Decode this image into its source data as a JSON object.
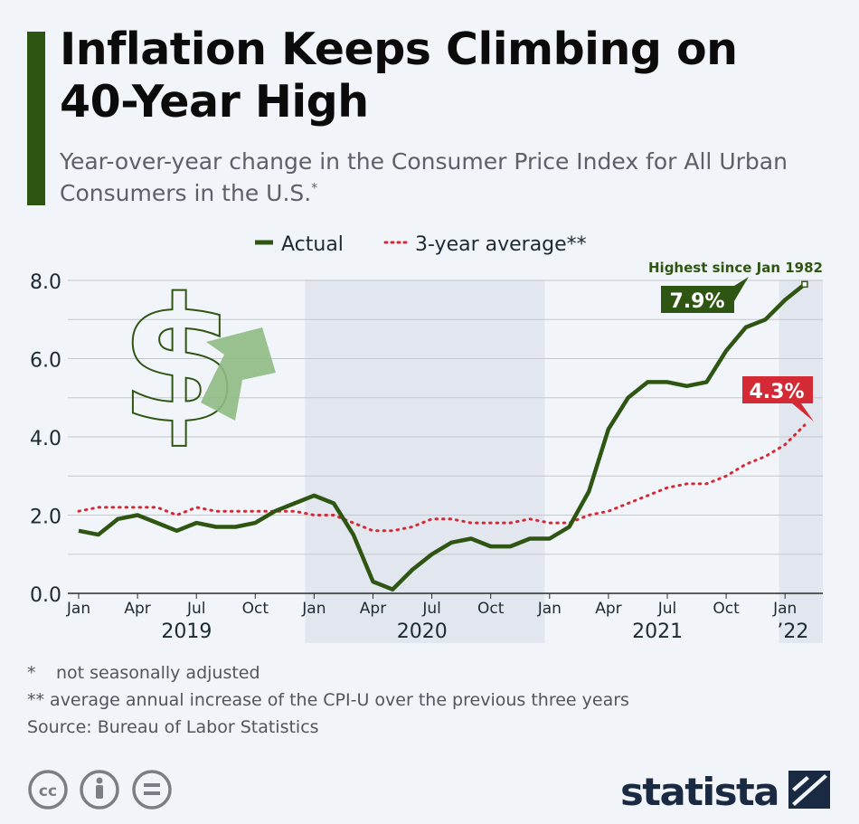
{
  "header": {
    "title": "Inflation Keeps Climbing on 40-Year High",
    "subtitle": "Year-over-year change in the Consumer Price Index for All Urban Consumers in the U.S.",
    "subtitle_mark": "*"
  },
  "chart_data": {
    "type": "line",
    "title": "Inflation Keeps Climbing on 40-Year High",
    "ylim": [
      0,
      8
    ],
    "y_ticks": [
      "0.0",
      "2.0",
      "4.0",
      "6.0",
      "8.0"
    ],
    "x_tick_labels": [
      "Jan",
      "Apr",
      "Jul",
      "Oct",
      "Jan",
      "Apr",
      "Jul",
      "Oct",
      "Jan",
      "Apr",
      "Jul",
      "Oct",
      "Jan"
    ],
    "year_labels": [
      "2019",
      "2020",
      "2021",
      "’22"
    ],
    "x": [
      "2019-01",
      "2019-02",
      "2019-03",
      "2019-04",
      "2019-05",
      "2019-06",
      "2019-07",
      "2019-08",
      "2019-09",
      "2019-10",
      "2019-11",
      "2019-12",
      "2020-01",
      "2020-02",
      "2020-03",
      "2020-04",
      "2020-05",
      "2020-06",
      "2020-07",
      "2020-08",
      "2020-09",
      "2020-10",
      "2020-11",
      "2020-12",
      "2021-01",
      "2021-02",
      "2021-03",
      "2021-04",
      "2021-05",
      "2021-06",
      "2021-07",
      "2021-08",
      "2021-09",
      "2021-10",
      "2021-11",
      "2021-12",
      "2022-01",
      "2022-02"
    ],
    "series": [
      {
        "name": "Actual",
        "color": "#2e5612",
        "style": "solid",
        "values": [
          1.6,
          1.5,
          1.9,
          2.0,
          1.8,
          1.6,
          1.8,
          1.7,
          1.7,
          1.8,
          2.1,
          2.3,
          2.5,
          2.3,
          1.5,
          0.3,
          0.1,
          0.6,
          1.0,
          1.3,
          1.4,
          1.2,
          1.2,
          1.4,
          1.4,
          1.7,
          2.6,
          4.2,
          5.0,
          5.4,
          5.4,
          5.3,
          5.4,
          6.2,
          6.8,
          7.0,
          7.5,
          7.9
        ]
      },
      {
        "name": "3-year average**",
        "color": "#d42a35",
        "style": "dotted",
        "values": [
          2.1,
          2.2,
          2.2,
          2.2,
          2.2,
          2.0,
          2.2,
          2.1,
          2.1,
          2.1,
          2.1,
          2.1,
          2.0,
          2.0,
          1.8,
          1.6,
          1.6,
          1.7,
          1.9,
          1.9,
          1.8,
          1.8,
          1.8,
          1.9,
          1.8,
          1.8,
          2.0,
          2.1,
          2.3,
          2.5,
          2.7,
          2.8,
          2.8,
          3.0,
          3.3,
          3.5,
          3.8,
          4.3
        ]
      }
    ],
    "annotations": {
      "actual_callout": "7.9%",
      "average_callout": "4.3%",
      "peak_note": "Highest since Jan 1982"
    },
    "shaded_periods": [
      "2020",
      "2022"
    ],
    "grid": true,
    "legend_position": "top-center"
  },
  "footer": {
    "notes": [
      {
        "mark": "*",
        "text": "not seasonally adjusted"
      },
      {
        "mark": "**",
        "text": "average annual increase of the CPI-U over the previous three years"
      }
    ],
    "source": "Source: Bureau of Labor Statistics",
    "license_icons": [
      "cc-icon",
      "by-icon",
      "nd-icon"
    ],
    "brand": "statista"
  },
  "colors": {
    "background": "#f1f4f9",
    "shade": "#e2e7ef",
    "actual": "#2e5612",
    "average": "#d42a35",
    "dollar_arrow": "#8fbb84",
    "brand": "#1a2a43"
  }
}
